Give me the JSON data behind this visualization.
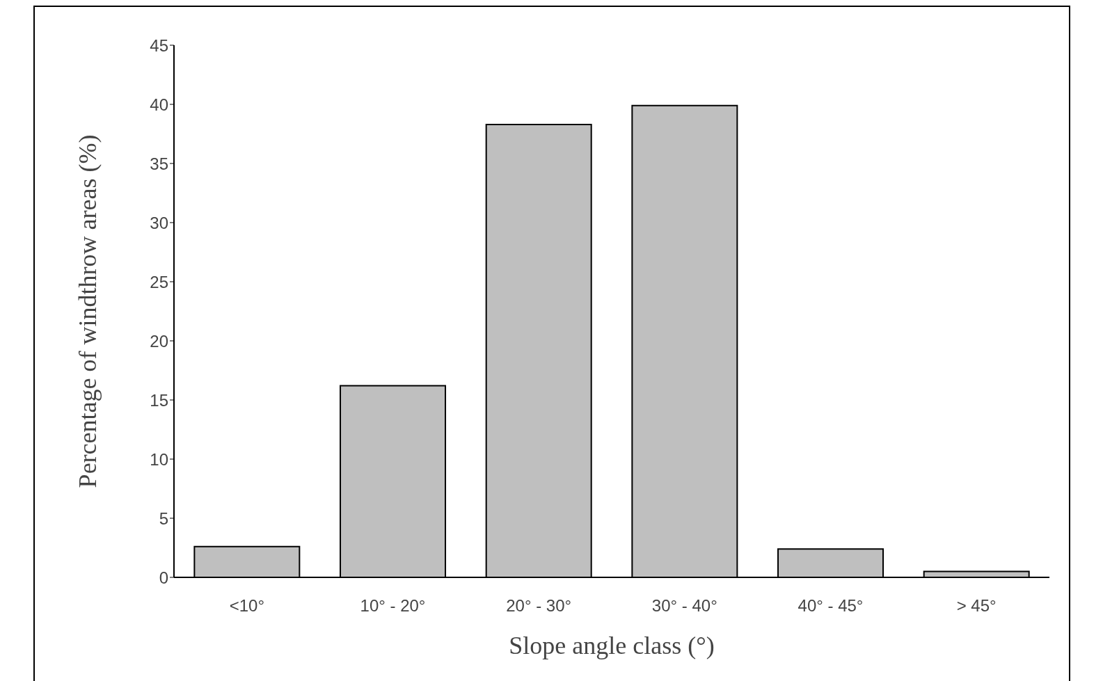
{
  "chart_data": {
    "type": "bar",
    "xlabel": "Slope angle class (°)",
    "ylabel": "Percentage of windthrow areas (%)",
    "categories": [
      "<10°",
      "10° - 20°",
      "20° - 30°",
      "30° - 40°",
      "40° - 45°",
      "> 45°"
    ],
    "values": [
      2.6,
      16.2,
      38.3,
      39.9,
      2.4,
      0.5
    ],
    "color": "#bfbfbf",
    "ylim": [
      0,
      45
    ],
    "yticks": [
      0,
      5,
      10,
      15,
      20,
      25,
      30,
      35,
      40,
      45
    ],
    "grid": false,
    "legend": false
  }
}
